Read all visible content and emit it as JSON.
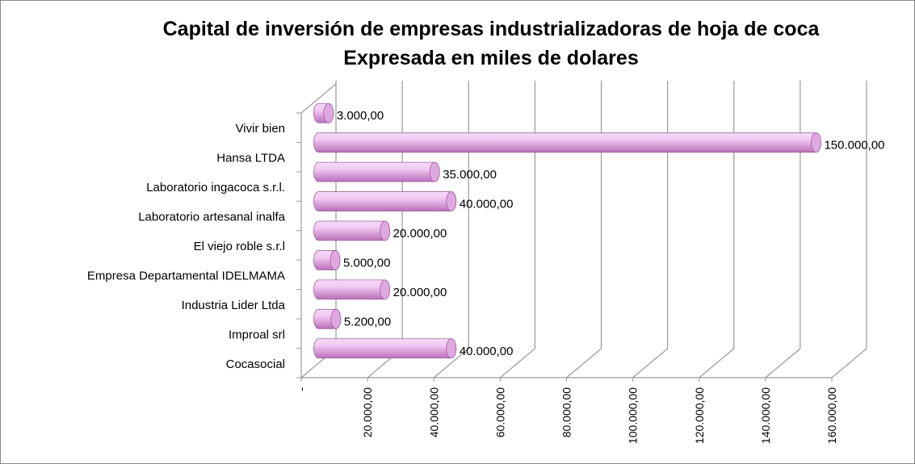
{
  "chart_data": {
    "type": "bar",
    "orientation": "horizontal",
    "title": "Capital de inversión de empresas industrializadoras de hoja de coca",
    "subtitle": "Expresada en miles de dolares",
    "categories": [
      "Cocasocial",
      "Improal srl",
      "Industria Lider Ltda",
      "Empresa Departamental IDELMAMA",
      "El viejo roble s.r.l",
      "Laboratorio artesanal inalfa",
      "Laboratorio ingacoca s.r.l.",
      "Hansa LTDA",
      "Vivir bien"
    ],
    "values": [
      40000,
      5200,
      20000,
      5000,
      20000,
      40000,
      35000,
      150000,
      3000
    ],
    "value_labels": [
      "40.000,00",
      "5.200,00",
      "20.000,00",
      "5.000,00",
      "20.000,00",
      "40.000,00",
      "35.000,00",
      "150.000,00",
      "3.000,00"
    ],
    "color": "#e0a8e0",
    "xlim": [
      0,
      160000
    ],
    "xticks": [
      {
        "value": 0,
        "label": "-"
      },
      {
        "value": 20000,
        "label": "20.000,00"
      },
      {
        "value": 40000,
        "label": "40.000,00"
      },
      {
        "value": 60000,
        "label": "60.000,00"
      },
      {
        "value": 80000,
        "label": "80.000,00"
      },
      {
        "value": 100000,
        "label": "100.000,00"
      },
      {
        "value": 120000,
        "label": "120.000,00"
      },
      {
        "value": 140000,
        "label": "140.000,00"
      },
      {
        "value": 160000,
        "label": "160.000,00"
      }
    ],
    "grid": true
  }
}
